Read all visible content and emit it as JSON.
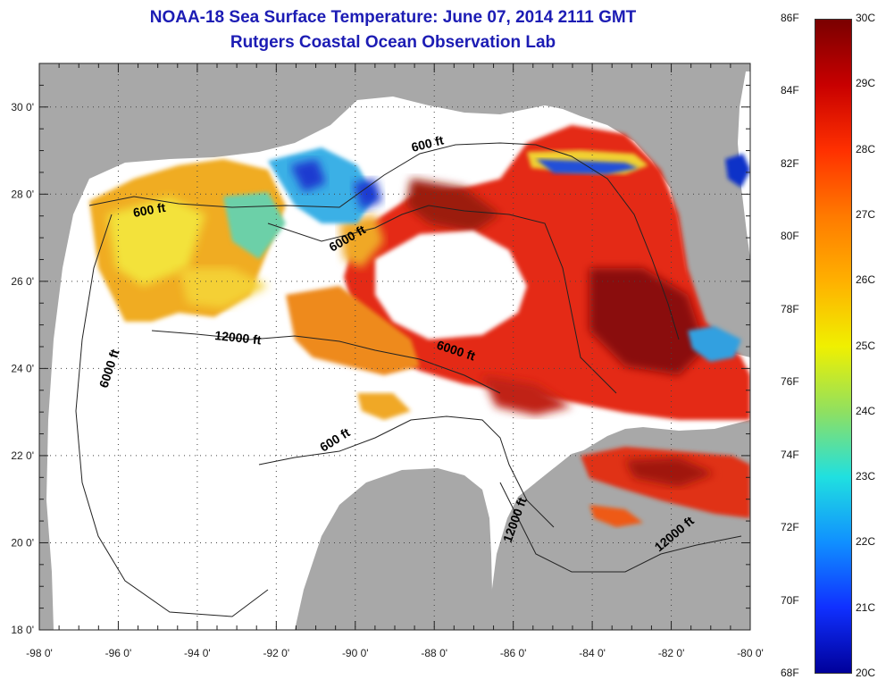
{
  "title": {
    "line1": "NOAA-18 Sea Surface Temperature:  June 07, 2014 2111 GMT",
    "line2": "Rutgers Coastal Ocean Observation Lab"
  },
  "map": {
    "x_ticks": [
      "-98 0'",
      "-96 0'",
      "-94 0'",
      "-92 0'",
      "-90 0'",
      "-88 0'",
      "-86 0'",
      "-84 0'",
      "-82 0'",
      "-80 0'"
    ],
    "y_ticks": [
      "18 0'",
      "20 0'",
      "22 0'",
      "24 0'",
      "26 0'",
      "28 0'",
      "30 0'"
    ],
    "lon_range": [
      -98,
      -80
    ],
    "lat_range": [
      18,
      31
    ],
    "grid": "dotted",
    "contour_labels": [
      {
        "text": "600 ft"
      },
      {
        "text": "600 ft"
      },
      {
        "text": "600 ft"
      },
      {
        "text": "6000 ft"
      },
      {
        "text": "6000 ft"
      },
      {
        "text": "6000 ft"
      },
      {
        "text": "12000 ft"
      },
      {
        "text": "12000 ft"
      },
      {
        "text": "12000 ft"
      }
    ],
    "colors": {
      "land": "#a8a8a8",
      "cloud": "#ffffff",
      "warmest": "#7e0c0c",
      "warm": "#e02810",
      "mid": "#f0a020",
      "cool": "#f2e438",
      "cold": "#30a8e8",
      "coldest": "#1020c8"
    }
  },
  "colorbar": {
    "f_labels": [
      "86F",
      "84F",
      "82F",
      "80F",
      "78F",
      "76F",
      "74F",
      "72F",
      "70F",
      "68F"
    ],
    "c_labels": [
      "30C",
      "29C",
      "28C",
      "27C",
      "26C",
      "25C",
      "24C",
      "23C",
      "22C",
      "21C",
      "20C"
    ],
    "stops": [
      "#7a0000",
      "#c80000",
      "#ff3000",
      "#ff7a00",
      "#ffb000",
      "#f0f000",
      "#90e060",
      "#20e0e0",
      "#1090ff",
      "#1030ff",
      "#00009a"
    ]
  }
}
